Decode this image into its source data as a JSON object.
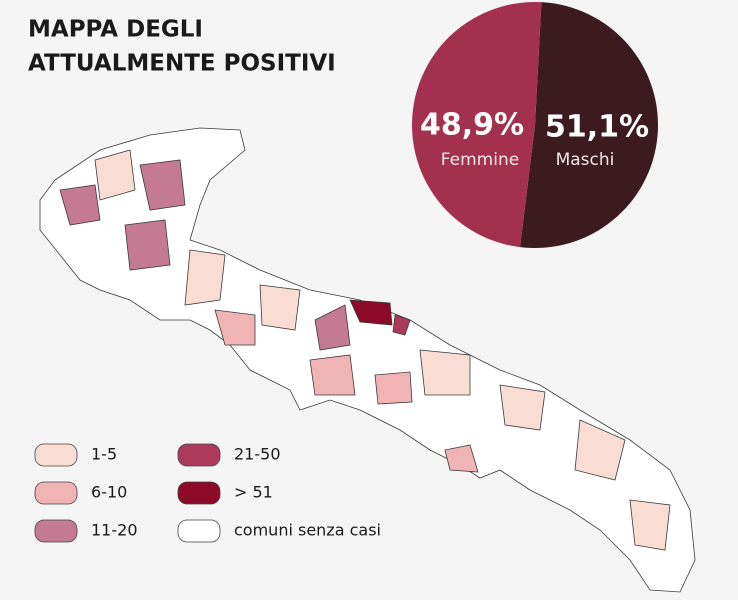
{
  "header": {
    "title_lines": [
      "MAPPA DEGLI",
      "ATTUALMENTE POSITIVI"
    ]
  },
  "chart_data": {
    "type": "pie",
    "categories": [
      "Femmine",
      "Maschi"
    ],
    "values": [
      48.9,
      51.1
    ],
    "value_labels": [
      "48,9%",
      "51,1%"
    ],
    "colors": [
      "#a3304f",
      "#3b1a20"
    ]
  },
  "legend": {
    "items": [
      {
        "label": "1-5",
        "color": "#f9dcd2"
      },
      {
        "label": "6-10",
        "color": "#f1b4b4"
      },
      {
        "label": "11-20",
        "color": "#c47a93"
      },
      {
        "label": "21-50",
        "color": "#ad3a5c"
      },
      {
        "label": "> 51",
        "color": "#8c0a27"
      },
      {
        "label": "comuni senza casi",
        "color": "#ffffff"
      }
    ]
  }
}
